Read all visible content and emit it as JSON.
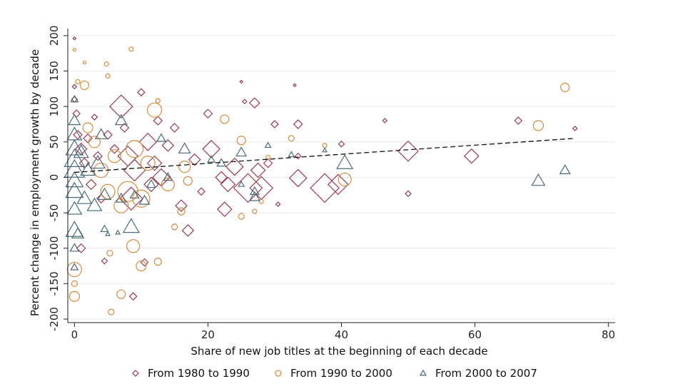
{
  "chart_data": {
    "type": "scatter",
    "title": "",
    "xlabel": "Share of new job titles at the beginning of each decade",
    "ylabel": "Percent change in employment growth by decade",
    "xlim": [
      -1,
      81
    ],
    "ylim": [
      -205,
      210
    ],
    "x_ticks": [
      0,
      20,
      40,
      60,
      80
    ],
    "y_ticks": [
      -200,
      -150,
      -100,
      -50,
      0,
      50,
      100,
      150,
      200
    ],
    "grid": true,
    "legend_position": "bottom",
    "fit_line": {
      "style": "dashed",
      "color": "#111111",
      "x": [
        0,
        75
      ],
      "y": [
        7,
        55
      ]
    },
    "series": [
      {
        "name": "From 1980 to 1990",
        "marker": "diamond",
        "color": "#9b3a4d",
        "points": [
          {
            "x": 0,
            "y": 196,
            "s": 2
          },
          {
            "x": 0,
            "y": 128,
            "s": 3
          },
          {
            "x": 0,
            "y": 110,
            "s": 4
          },
          {
            "x": 0.3,
            "y": 90,
            "s": 5
          },
          {
            "x": 0.5,
            "y": 60,
            "s": 6
          },
          {
            "x": 1,
            "y": 40,
            "s": 8
          },
          {
            "x": 1.5,
            "y": 20,
            "s": 7
          },
          {
            "x": 2,
            "y": 55,
            "s": 6
          },
          {
            "x": 2.5,
            "y": -10,
            "s": 7
          },
          {
            "x": 3,
            "y": 85,
            "s": 4
          },
          {
            "x": 3.5,
            "y": 30,
            "s": 6
          },
          {
            "x": 4,
            "y": -30,
            "s": 6
          },
          {
            "x": 4.5,
            "y": -118,
            "s": 4
          },
          {
            "x": 1,
            "y": -100,
            "s": 6
          },
          {
            "x": 5,
            "y": 60,
            "s": 6
          },
          {
            "x": 6,
            "y": 40,
            "s": 6
          },
          {
            "x": 7,
            "y": 100,
            "s": 16
          },
          {
            "x": 7.5,
            "y": 70,
            "s": 6
          },
          {
            "x": 8,
            "y": 30,
            "s": 14
          },
          {
            "x": 8.5,
            "y": -30,
            "s": 16
          },
          {
            "x": 9,
            "y": 10,
            "s": 15
          },
          {
            "x": 10,
            "y": 120,
            "s": 5
          },
          {
            "x": 10.5,
            "y": -120,
            "s": 5
          },
          {
            "x": 11,
            "y": 50,
            "s": 12
          },
          {
            "x": 11.5,
            "y": -10,
            "s": 10
          },
          {
            "x": 12,
            "y": 20,
            "s": 10
          },
          {
            "x": 12.5,
            "y": 80,
            "s": 6
          },
          {
            "x": 13,
            "y": 0,
            "s": 12
          },
          {
            "x": 14,
            "y": 45,
            "s": 8
          },
          {
            "x": 15,
            "y": 70,
            "s": 6
          },
          {
            "x": 16,
            "y": -40,
            "s": 8
          },
          {
            "x": 17,
            "y": -75,
            "s": 8
          },
          {
            "x": 18,
            "y": 25,
            "s": 8
          },
          {
            "x": 19,
            "y": -20,
            "s": 5
          },
          {
            "x": 20,
            "y": 90,
            "s": 6
          },
          {
            "x": 20.5,
            "y": 40,
            "s": 12
          },
          {
            "x": 22,
            "y": 0,
            "s": 8
          },
          {
            "x": 22.5,
            "y": -45,
            "s": 10
          },
          {
            "x": 23,
            "y": -10,
            "s": 10
          },
          {
            "x": 24,
            "y": 15,
            "s": 12
          },
          {
            "x": 25,
            "y": 135,
            "s": 2
          },
          {
            "x": 25.5,
            "y": 107,
            "s": 3
          },
          {
            "x": 26,
            "y": -15,
            "s": 20
          },
          {
            "x": 27,
            "y": 105,
            "s": 7
          },
          {
            "x": 27.5,
            "y": 10,
            "s": 10
          },
          {
            "x": 28,
            "y": -15,
            "s": 16
          },
          {
            "x": 29,
            "y": 20,
            "s": 6
          },
          {
            "x": 30,
            "y": 75,
            "s": 5
          },
          {
            "x": 30.5,
            "y": -38,
            "s": 3
          },
          {
            "x": 33,
            "y": 130,
            "s": 2
          },
          {
            "x": 33.5,
            "y": 75,
            "s": 6
          },
          {
            "x": 33.5,
            "y": 30,
            "s": 4
          },
          {
            "x": 33.5,
            "y": -1,
            "s": 12
          },
          {
            "x": 37.5,
            "y": -15,
            "s": 20
          },
          {
            "x": 39.5,
            "y": -10,
            "s": 14
          },
          {
            "x": 40,
            "y": 47,
            "s": 4
          },
          {
            "x": 46.5,
            "y": 80,
            "s": 3
          },
          {
            "x": 50,
            "y": -23,
            "s": 4
          },
          {
            "x": 50,
            "y": 37,
            "s": 14
          },
          {
            "x": 59.5,
            "y": 30,
            "s": 10
          },
          {
            "x": 66.5,
            "y": 80,
            "s": 5
          },
          {
            "x": 75,
            "y": 69,
            "s": 3
          },
          {
            "x": 8.8,
            "y": -168,
            "s": 5
          }
        ]
      },
      {
        "name": "From 1990 to 2000",
        "marker": "circle",
        "color": "#d98a3a",
        "points": [
          {
            "x": 0,
            "y": 180,
            "s": 2
          },
          {
            "x": 0.5,
            "y": 135,
            "s": 3
          },
          {
            "x": 1.5,
            "y": 130,
            "s": 6
          },
          {
            "x": 1.5,
            "y": 162,
            "s": 2
          },
          {
            "x": 4.8,
            "y": 160,
            "s": 3
          },
          {
            "x": 5,
            "y": 143,
            "s": 3
          },
          {
            "x": 8.5,
            "y": 181,
            "s": 3
          },
          {
            "x": 0,
            "y": -130,
            "s": 10
          },
          {
            "x": 0,
            "y": -150,
            "s": 4
          },
          {
            "x": 0,
            "y": -168,
            "s": 7
          },
          {
            "x": 5.3,
            "y": -107,
            "s": 4
          },
          {
            "x": 5.5,
            "y": -190,
            "s": 4
          },
          {
            "x": 7,
            "y": -165,
            "s": 6
          },
          {
            "x": 8.8,
            "y": -97,
            "s": 9
          },
          {
            "x": 10,
            "y": -125,
            "s": 7
          },
          {
            "x": 12.5,
            "y": -119,
            "s": 5
          },
          {
            "x": 12,
            "y": 95,
            "s": 10
          },
          {
            "x": 12.5,
            "y": 108,
            "s": 3
          },
          {
            "x": 2,
            "y": 70,
            "s": 7
          },
          {
            "x": 3,
            "y": 50,
            "s": 8
          },
          {
            "x": 4,
            "y": 10,
            "s": 10
          },
          {
            "x": 5,
            "y": -20,
            "s": 10
          },
          {
            "x": 6,
            "y": 30,
            "s": 9
          },
          {
            "x": 7,
            "y": -40,
            "s": 10
          },
          {
            "x": 8,
            "y": -20,
            "s": 14
          },
          {
            "x": 9,
            "y": 40,
            "s": 12
          },
          {
            "x": 10,
            "y": -30,
            "s": 12
          },
          {
            "x": 11,
            "y": 20,
            "s": 10
          },
          {
            "x": 14,
            "y": -10,
            "s": 9
          },
          {
            "x": 15,
            "y": -70,
            "s": 4
          },
          {
            "x": 16,
            "y": -48,
            "s": 5
          },
          {
            "x": 16.5,
            "y": 15,
            "s": 8
          },
          {
            "x": 17,
            "y": -5,
            "s": 6
          },
          {
            "x": 22.5,
            "y": 82,
            "s": 6
          },
          {
            "x": 25,
            "y": 52,
            "s": 6
          },
          {
            "x": 25,
            "y": -55,
            "s": 4
          },
          {
            "x": 27,
            "y": -48,
            "s": 3
          },
          {
            "x": 28,
            "y": -34,
            "s": 3
          },
          {
            "x": 29,
            "y": 28,
            "s": 3
          },
          {
            "x": 32.5,
            "y": 55,
            "s": 4
          },
          {
            "x": 37.5,
            "y": 45,
            "s": 3
          },
          {
            "x": 40.5,
            "y": -3,
            "s": 9
          },
          {
            "x": 69.5,
            "y": 73,
            "s": 7
          },
          {
            "x": 73.5,
            "y": 127,
            "s": 6
          }
        ]
      },
      {
        "name": "From 2000 to 2007",
        "marker": "triangle",
        "color": "#4a6b7c",
        "points": [
          {
            "x": 0,
            "y": 110,
            "s": 5
          },
          {
            "x": 0,
            "y": 80,
            "s": 8
          },
          {
            "x": 0,
            "y": 60,
            "s": 10
          },
          {
            "x": 0,
            "y": 40,
            "s": 12
          },
          {
            "x": 0,
            "y": 25,
            "s": 14
          },
          {
            "x": 0,
            "y": 10,
            "s": 14
          },
          {
            "x": 0,
            "y": -5,
            "s": 12
          },
          {
            "x": 0,
            "y": -20,
            "s": 12
          },
          {
            "x": 0,
            "y": -45,
            "s": 10
          },
          {
            "x": 0,
            "y": -75,
            "s": 12
          },
          {
            "x": 0,
            "y": -100,
            "s": 6
          },
          {
            "x": 0,
            "y": -127,
            "s": 5
          },
          {
            "x": 0.5,
            "y": -80,
            "s": 8
          },
          {
            "x": 1,
            "y": 35,
            "s": 10
          },
          {
            "x": 1.5,
            "y": -30,
            "s": 10
          },
          {
            "x": 2,
            "y": 10,
            "s": 10
          },
          {
            "x": 3,
            "y": -40,
            "s": 10
          },
          {
            "x": 3.5,
            "y": 20,
            "s": 10
          },
          {
            "x": 4,
            "y": 60,
            "s": 8
          },
          {
            "x": 4.5,
            "y": -25,
            "s": 9
          },
          {
            "x": 4.5,
            "y": -73,
            "s": 5
          },
          {
            "x": 5,
            "y": -80,
            "s": 3
          },
          {
            "x": 6.5,
            "y": -78,
            "s": 3
          },
          {
            "x": 8.5,
            "y": -70,
            "s": 11
          },
          {
            "x": 7,
            "y": 80,
            "s": 8
          },
          {
            "x": 7,
            "y": -30,
            "s": 7
          },
          {
            "x": 9,
            "y": -25,
            "s": 6
          },
          {
            "x": 10.5,
            "y": -33,
            "s": 7
          },
          {
            "x": 11.5,
            "y": -10,
            "s": 6
          },
          {
            "x": 13,
            "y": 55,
            "s": 6
          },
          {
            "x": 14,
            "y": 0,
            "s": 6
          },
          {
            "x": 16.5,
            "y": 40,
            "s": 8
          },
          {
            "x": 20.5,
            "y": 25,
            "s": 5
          },
          {
            "x": 22,
            "y": 20,
            "s": 6
          },
          {
            "x": 25,
            "y": 35,
            "s": 7
          },
          {
            "x": 25,
            "y": -10,
            "s": 4
          },
          {
            "x": 27,
            "y": -20,
            "s": 6
          },
          {
            "x": 27,
            "y": -28,
            "s": 7
          },
          {
            "x": 29,
            "y": 45,
            "s": 4
          },
          {
            "x": 32.5,
            "y": 32,
            "s": 4
          },
          {
            "x": 37.5,
            "y": 38,
            "s": 3
          },
          {
            "x": 40.5,
            "y": 20,
            "s": 11
          },
          {
            "x": 69.5,
            "y": -5,
            "s": 9
          },
          {
            "x": 73.5,
            "y": 10,
            "s": 7
          }
        ]
      }
    ]
  }
}
